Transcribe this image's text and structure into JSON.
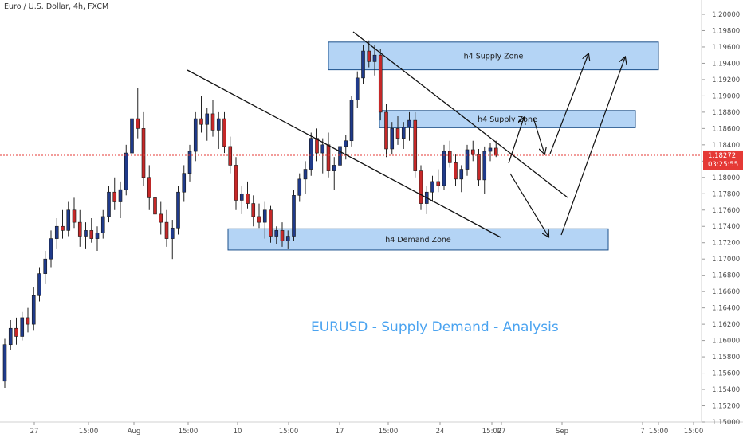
{
  "header": {
    "symbol_label": "Euro / U.S. Dollar, 4h, FXCM"
  },
  "caption": "EURUSD - Supply Demand - Analysis",
  "price_badge": {
    "price": "1.18272",
    "countdown": "03:25:55"
  },
  "colors": {
    "bull": "#1f3a8a",
    "bear": "#c62828",
    "zone_fill": "#a7cdf3",
    "zone_stroke": "#1b4f8a",
    "caption": "#4aa3f0",
    "price_line": "#e53935"
  },
  "chart_data": {
    "type": "candlestick",
    "title": "",
    "ylim": [
      1.15,
      1.2015
    ],
    "price_axis_ticks": [
      "1.20000",
      "1.19800",
      "1.19600",
      "1.19400",
      "1.19200",
      "1.19000",
      "1.18800",
      "1.18600",
      "1.18400",
      "1.18200",
      "1.18000",
      "1.17800",
      "1.17600",
      "1.17400",
      "1.17200",
      "1.17000",
      "1.16800",
      "1.16600",
      "1.16400",
      "1.16200",
      "1.16000",
      "1.15800",
      "1.15600",
      "1.15400",
      "1.15200",
      "1.15000"
    ],
    "time_axis_ticks": [
      "27",
      "15:00",
      "Aug",
      "15:00",
      "10",
      "15:00",
      "17",
      "15:00",
      "24",
      "15:00",
      "27",
      "Sep",
      "7",
      "15:00",
      "15:00"
    ],
    "current_price": 1.18272,
    "zones": [
      {
        "label": "h4 Supply Zone",
        "top": 1.1966,
        "bottom": 1.1932
      },
      {
        "label": "h4 Supply Zone",
        "top": 1.1882,
        "bottom": 1.1861
      },
      {
        "label": "h4 Demand Zone",
        "top": 1.1737,
        "bottom": 1.1711
      }
    ],
    "candles": [
      [
        1.155,
        1.1602,
        1.1542,
        1.1595
      ],
      [
        1.1595,
        1.1625,
        1.1588,
        1.1615
      ],
      [
        1.1615,
        1.1628,
        1.1595,
        1.1605
      ],
      [
        1.1605,
        1.1635,
        1.16,
        1.1628
      ],
      [
        1.1628,
        1.164,
        1.161,
        1.162
      ],
      [
        1.162,
        1.1665,
        1.1612,
        1.1655
      ],
      [
        1.1655,
        1.169,
        1.1648,
        1.1682
      ],
      [
        1.1682,
        1.171,
        1.167,
        1.17
      ],
      [
        1.17,
        1.1735,
        1.169,
        1.1725
      ],
      [
        1.1725,
        1.175,
        1.1712,
        1.174
      ],
      [
        1.174,
        1.176,
        1.1725,
        1.1735
      ],
      [
        1.1735,
        1.177,
        1.1728,
        1.176
      ],
      [
        1.176,
        1.1775,
        1.1738,
        1.1745
      ],
      [
        1.1745,
        1.176,
        1.1715,
        1.1728
      ],
      [
        1.1728,
        1.1745,
        1.1712,
        1.1735
      ],
      [
        1.1735,
        1.175,
        1.172,
        1.1725
      ],
      [
        1.1725,
        1.174,
        1.171,
        1.1732
      ],
      [
        1.1732,
        1.176,
        1.1725,
        1.1752
      ],
      [
        1.1752,
        1.179,
        1.1745,
        1.1782
      ],
      [
        1.1782,
        1.18,
        1.176,
        1.177
      ],
      [
        1.177,
        1.1795,
        1.175,
        1.1785
      ],
      [
        1.1785,
        1.184,
        1.1778,
        1.183
      ],
      [
        1.183,
        1.188,
        1.1822,
        1.1872
      ],
      [
        1.1872,
        1.191,
        1.1848,
        1.186
      ],
      [
        1.186,
        1.188,
        1.179,
        1.18
      ],
      [
        1.18,
        1.1815,
        1.176,
        1.1775
      ],
      [
        1.1775,
        1.179,
        1.1745,
        1.1755
      ],
      [
        1.1755,
        1.177,
        1.173,
        1.1745
      ],
      [
        1.1745,
        1.176,
        1.1715,
        1.1725
      ],
      [
        1.1725,
        1.1748,
        1.17,
        1.1738
      ],
      [
        1.1738,
        1.179,
        1.173,
        1.1782
      ],
      [
        1.1782,
        1.1815,
        1.177,
        1.1805
      ],
      [
        1.1805,
        1.184,
        1.1795,
        1.1832
      ],
      [
        1.1832,
        1.188,
        1.182,
        1.1872
      ],
      [
        1.1872,
        1.19,
        1.1855,
        1.1865
      ],
      [
        1.1865,
        1.1885,
        1.1845,
        1.1878
      ],
      [
        1.1878,
        1.1895,
        1.185,
        1.1858
      ],
      [
        1.1858,
        1.188,
        1.1835,
        1.1872
      ],
      [
        1.1872,
        1.188,
        1.183,
        1.1838
      ],
      [
        1.1838,
        1.185,
        1.1805,
        1.1815
      ],
      [
        1.1815,
        1.1825,
        1.176,
        1.1772
      ],
      [
        1.1772,
        1.179,
        1.1755,
        1.178
      ],
      [
        1.178,
        1.1795,
        1.1762,
        1.1768
      ],
      [
        1.1768,
        1.1778,
        1.174,
        1.1752
      ],
      [
        1.1752,
        1.1768,
        1.1738,
        1.1745
      ],
      [
        1.1745,
        1.177,
        1.1725,
        1.176
      ],
      [
        1.176,
        1.1765,
        1.172,
        1.1728
      ],
      [
        1.1728,
        1.174,
        1.1718,
        1.1735
      ],
      [
        1.1735,
        1.1745,
        1.1715,
        1.1722
      ],
      [
        1.1722,
        1.1735,
        1.1712,
        1.1728
      ],
      [
        1.1728,
        1.1785,
        1.1722,
        1.1778
      ],
      [
        1.1778,
        1.1805,
        1.177,
        1.1798
      ],
      [
        1.1798,
        1.182,
        1.178,
        1.181
      ],
      [
        1.181,
        1.1855,
        1.1802,
        1.1848
      ],
      [
        1.1848,
        1.186,
        1.182,
        1.183
      ],
      [
        1.183,
        1.1848,
        1.1805,
        1.184
      ],
      [
        1.184,
        1.1855,
        1.18,
        1.1808
      ],
      [
        1.1808,
        1.1825,
        1.1785,
        1.1815
      ],
      [
        1.1815,
        1.1845,
        1.1805,
        1.1838
      ],
      [
        1.1838,
        1.1852,
        1.1822,
        1.1845
      ],
      [
        1.1845,
        1.19,
        1.1838,
        1.1895
      ],
      [
        1.1895,
        1.193,
        1.1885,
        1.1922
      ],
      [
        1.1922,
        1.1962,
        1.1915,
        1.1955
      ],
      [
        1.1955,
        1.1968,
        1.1935,
        1.1942
      ],
      [
        1.1942,
        1.1962,
        1.1925,
        1.195
      ],
      [
        1.195,
        1.1958,
        1.187,
        1.188
      ],
      [
        1.188,
        1.189,
        1.1825,
        1.1835
      ],
      [
        1.1835,
        1.1868,
        1.1828,
        1.186
      ],
      [
        1.186,
        1.1875,
        1.184,
        1.1848
      ],
      [
        1.1848,
        1.1868,
        1.1835,
        1.1862
      ],
      [
        1.1862,
        1.188,
        1.1845,
        1.187
      ],
      [
        1.187,
        1.188,
        1.18,
        1.1808
      ],
      [
        1.1808,
        1.1815,
        1.176,
        1.1768
      ],
      [
        1.1768,
        1.179,
        1.1755,
        1.1782
      ],
      [
        1.1782,
        1.1802,
        1.177,
        1.1795
      ],
      [
        1.1795,
        1.181,
        1.1782,
        1.179
      ],
      [
        1.179,
        1.184,
        1.1785,
        1.1832
      ],
      [
        1.1832,
        1.1845,
        1.1812,
        1.1818
      ],
      [
        1.1818,
        1.1828,
        1.179,
        1.1798
      ],
      [
        1.1798,
        1.1815,
        1.1782,
        1.181
      ],
      [
        1.181,
        1.184,
        1.1802,
        1.1834
      ],
      [
        1.1834,
        1.1845,
        1.182,
        1.1828
      ],
      [
        1.1828,
        1.1835,
        1.179,
        1.1797
      ],
      [
        1.1797,
        1.1838,
        1.178,
        1.1832
      ],
      [
        1.1832,
        1.1842,
        1.182,
        1.1836
      ],
      [
        1.1836,
        1.1845,
        1.1825,
        1.1827
      ]
    ]
  },
  "annotations": {
    "count_trendlines": 2,
    "count_arrows": 5
  }
}
